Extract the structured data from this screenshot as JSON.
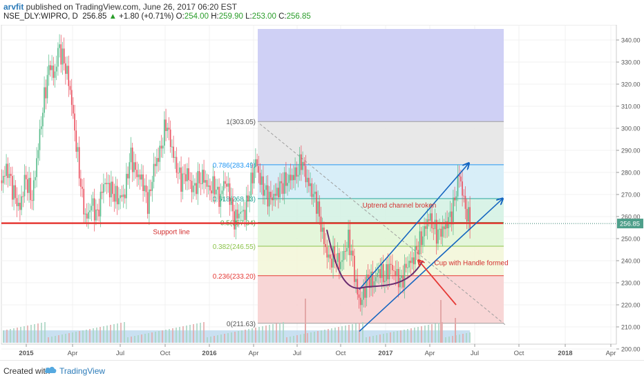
{
  "header": {
    "author": "arvfit",
    "published_text": " published on TradingView.com, June 26, 2017 06:20 EST",
    "symbol": "NSE_DLY:WIPRO, D",
    "price": "256.85",
    "change": "+1.80 (+0.71%)",
    "open_label": "O:",
    "open": "254.00",
    "high_label": "H:",
    "high": "259.90",
    "low_label": "L:",
    "low": "253.00",
    "close_label": "C:",
    "close": "256.85"
  },
  "footer": {
    "created_with": "Created with",
    "brand": "TradingView"
  },
  "chart_data": {
    "type": "candlestick",
    "y_axis": {
      "min": 195,
      "max": 345,
      "ticks": [
        200,
        210,
        220,
        230,
        240,
        250,
        260,
        270,
        280,
        290,
        300,
        310,
        320,
        330,
        340
      ],
      "position": "right"
    },
    "x_axis": {
      "ticks": [
        "2015",
        "Apr",
        "Jul",
        "Oct",
        "2016",
        "Apr",
        "Jul",
        "Oct",
        "2017",
        "Apr",
        "Jul",
        "Oct",
        "2018",
        "Apr"
      ]
    },
    "last_price": {
      "value": 256.85,
      "label": "256.85"
    },
    "price_path": [
      [
        0,
        275
      ],
      [
        10,
        282
      ],
      [
        18,
        272
      ],
      [
        28,
        263
      ],
      [
        36,
        278
      ],
      [
        46,
        268
      ],
      [
        55,
        292
      ],
      [
        64,
        315
      ],
      [
        72,
        330
      ],
      [
        78,
        322
      ],
      [
        84,
        337
      ],
      [
        90,
        332
      ],
      [
        96,
        326
      ],
      [
        102,
        315
      ],
      [
        110,
        292
      ],
      [
        118,
        270
      ],
      [
        124,
        258
      ],
      [
        132,
        266
      ],
      [
        140,
        260
      ],
      [
        150,
        276
      ],
      [
        160,
        272
      ],
      [
        170,
        268
      ],
      [
        180,
        270
      ],
      [
        188,
        288
      ],
      [
        196,
        280
      ],
      [
        206,
        276
      ],
      [
        214,
        265
      ],
      [
        222,
        282
      ],
      [
        232,
        290
      ],
      [
        240,
        303
      ],
      [
        246,
        294
      ],
      [
        254,
        283
      ],
      [
        262,
        276
      ],
      [
        270,
        280
      ],
      [
        278,
        272
      ],
      [
        286,
        276
      ],
      [
        294,
        278
      ],
      [
        302,
        272
      ],
      [
        310,
        274
      ],
      [
        318,
        267
      ],
      [
        324,
        277
      ],
      [
        332,
        270
      ],
      [
        338,
        258
      ],
      [
        346,
        262
      ],
      [
        354,
        262
      ],
      [
        362,
        274
      ],
      [
        370,
        286
      ],
      [
        376,
        276
      ],
      [
        382,
        272
      ],
      [
        390,
        268
      ],
      [
        398,
        270
      ],
      [
        406,
        274
      ],
      [
        414,
        276
      ],
      [
        422,
        278
      ],
      [
        430,
        280
      ],
      [
        436,
        286
      ],
      [
        442,
        278
      ],
      [
        450,
        272
      ],
      [
        458,
        266
      ],
      [
        464,
        256
      ],
      [
        470,
        246
      ],
      [
        476,
        240
      ],
      [
        484,
        242
      ],
      [
        492,
        238
      ],
      [
        498,
        244
      ],
      [
        504,
        250
      ],
      [
        510,
        240
      ],
      [
        516,
        226
      ],
      [
        522,
        220
      ],
      [
        526,
        226
      ],
      [
        532,
        232
      ],
      [
        540,
        230
      ],
      [
        548,
        236
      ],
      [
        556,
        232
      ],
      [
        564,
        238
      ],
      [
        572,
        234
      ],
      [
        580,
        230
      ],
      [
        588,
        238
      ],
      [
        596,
        240
      ],
      [
        604,
        246
      ],
      [
        612,
        252
      ],
      [
        620,
        260
      ],
      [
        626,
        256
      ],
      [
        632,
        252
      ],
      [
        640,
        254
      ],
      [
        648,
        258
      ],
      [
        654,
        262
      ],
      [
        660,
        272
      ],
      [
        664,
        280
      ],
      [
        668,
        272
      ],
      [
        674,
        262
      ],
      [
        680,
        257
      ]
    ],
    "fibonacci": {
      "levels": [
        {
          "label": "1(303.05)",
          "value": 303.05,
          "color": "#9e9e9e"
        },
        {
          "label": "0.786(283.49)",
          "value": 283.49,
          "color": "#2196f3"
        },
        {
          "label": "0.618(268.13)",
          "value": 268.13,
          "color": "#26a69a"
        },
        {
          "label": "0.5(257.34)",
          "value": 257.34,
          "color": "#4caf50"
        },
        {
          "label": "0.382(246.55)",
          "value": 246.55,
          "color": "#8bc34a"
        },
        {
          "label": "0.236(233.20)",
          "value": 233.2,
          "color": "#e53935"
        },
        {
          "label": "0(211.63)",
          "value": 211.63,
          "color": "#9e9e9e"
        }
      ],
      "extension_top": 345
    },
    "annotations": [
      {
        "text": "Support line",
        "color": "#d32f2f"
      },
      {
        "text": "Uptrend channel broken",
        "color": "#d32f2f"
      },
      {
        "text": "Cup with Handle formed",
        "color": "#d32f2f"
      }
    ],
    "support_line": {
      "value": 257.0,
      "color": "#e53935"
    },
    "grid": true
  }
}
